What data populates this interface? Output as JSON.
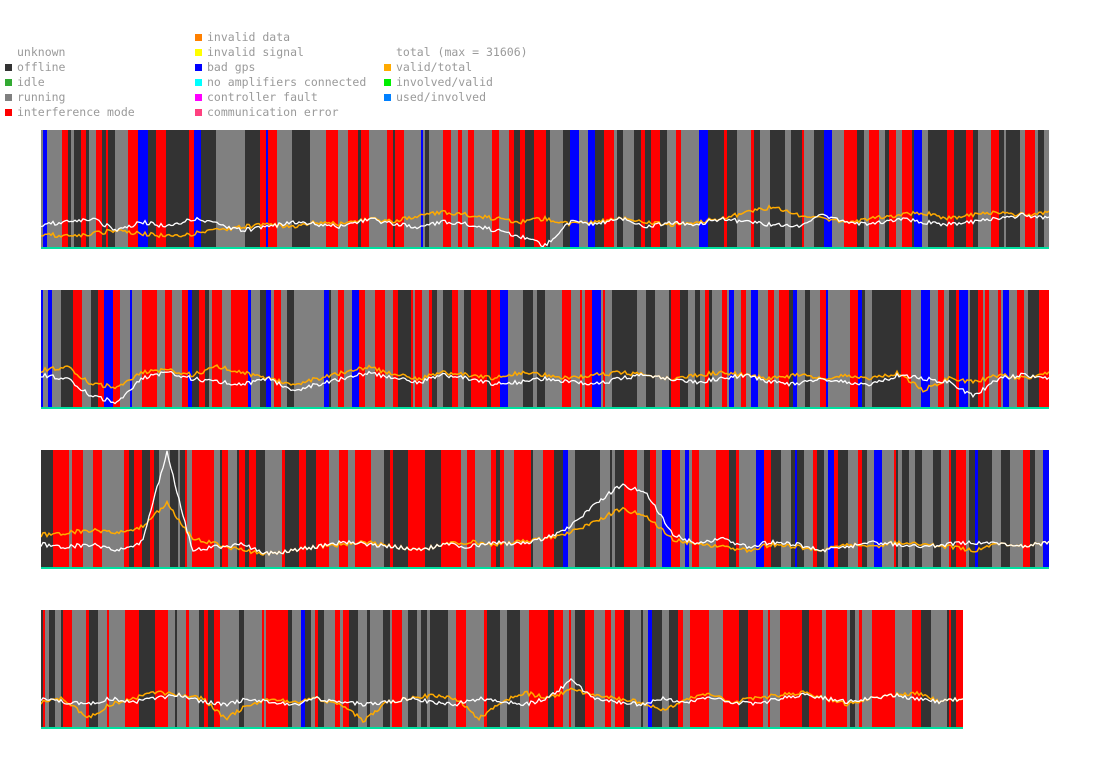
{
  "legend": {
    "states": [
      {
        "label": "unknown",
        "color": ""
      },
      {
        "label": "offline",
        "color": "#333333"
      },
      {
        "label": "idle",
        "color": "#33aa33"
      },
      {
        "label": "running",
        "color": "#808080"
      },
      {
        "label": "interference mode",
        "color": "#ff0000"
      }
    ],
    "faults": [
      {
        "label": "invalid data",
        "color": "#ff8000"
      },
      {
        "label": "invalid signal",
        "color": "#ffff00"
      },
      {
        "label": "bad gps",
        "color": "#0000ff"
      },
      {
        "label": "no amplifiers connected",
        "color": "#00ffff"
      },
      {
        "label": "controller fault",
        "color": "#ff00ff"
      },
      {
        "label": "communication error",
        "color": "#ff4080"
      }
    ],
    "lines": [
      {
        "label": "total (max = 31606)",
        "color": ""
      },
      {
        "label": "valid/total",
        "color": "#ffaa00"
      },
      {
        "label": "involved/valid",
        "color": "#00ee00"
      },
      {
        "label": "used/involved",
        "color": "#0080ff"
      }
    ]
  },
  "chart_data": {
    "type": "line",
    "total_max": 31606,
    "panels": [
      {
        "width_fraction": 1.0,
        "seed": 11,
        "blue_fraction": 0.06,
        "red_fraction": 0.28,
        "white": [
          0.2,
          0.22,
          0.25,
          0.15,
          0.22,
          0.18,
          0.25,
          0.2,
          0.15,
          0.18,
          0.22,
          0.2,
          0.18,
          0.25,
          0.2,
          0.18,
          0.22,
          0.2,
          0.15,
          0.1,
          0.02,
          0.22,
          0.2,
          0.25,
          0.18,
          0.22,
          0.2,
          0.25,
          0.22,
          0.2,
          0.18,
          0.28,
          0.22,
          0.2,
          0.25,
          0.22,
          0.2,
          0.22,
          0.25,
          0.28,
          0.25
        ],
        "orange": [
          0.12,
          0.1,
          0.12,
          0.15,
          0.12,
          0.1,
          0.12,
          0.15,
          0.18,
          0.2,
          0.18,
          0.22,
          0.2,
          0.25,
          0.22,
          0.28,
          0.3,
          0.28,
          0.25,
          0.22,
          0.25,
          0.2,
          0.22,
          0.25,
          0.22,
          0.2,
          0.22,
          0.25,
          0.3,
          0.35,
          0.28,
          0.25,
          0.22,
          0.25,
          0.28,
          0.3,
          0.25,
          0.28,
          0.3,
          0.28,
          0.3
        ]
      },
      {
        "width_fraction": 1.0,
        "seed": 23,
        "blue_fraction": 0.12,
        "red_fraction": 0.3,
        "white": [
          0.28,
          0.25,
          0.1,
          0.05,
          0.25,
          0.3,
          0.25,
          0.22,
          0.2,
          0.25,
          0.15,
          0.2,
          0.25,
          0.3,
          0.25,
          0.22,
          0.28,
          0.25,
          0.2,
          0.22,
          0.25,
          0.22,
          0.2,
          0.25,
          0.28,
          0.25,
          0.22,
          0.25,
          0.28,
          0.22,
          0.2,
          0.25,
          0.22,
          0.2,
          0.28,
          0.25,
          0.22,
          0.1,
          0.25,
          0.28,
          0.25
        ],
        "orange": [
          0.32,
          0.35,
          0.2,
          0.18,
          0.3,
          0.32,
          0.28,
          0.35,
          0.3,
          0.25,
          0.2,
          0.25,
          0.3,
          0.35,
          0.28,
          0.25,
          0.3,
          0.28,
          0.25,
          0.3,
          0.28,
          0.25,
          0.28,
          0.3,
          0.28,
          0.25,
          0.28,
          0.3,
          0.28,
          0.25,
          0.28,
          0.25,
          0.28,
          0.25,
          0.3,
          0.15,
          0.25,
          0.22,
          0.28,
          0.25,
          0.3
        ]
      },
      {
        "width_fraction": 1.0,
        "seed": 37,
        "blue_fraction": 0.05,
        "red_fraction": 0.3,
        "white": [
          0.2,
          0.18,
          0.2,
          0.15,
          0.22,
          0.98,
          0.15,
          0.18,
          0.2,
          0.12,
          0.15,
          0.18,
          0.22,
          0.2,
          0.18,
          0.15,
          0.2,
          0.18,
          0.22,
          0.2,
          0.25,
          0.35,
          0.55,
          0.7,
          0.65,
          0.3,
          0.2,
          0.25,
          0.18,
          0.22,
          0.2,
          0.15,
          0.18,
          0.22,
          0.2,
          0.18,
          0.2,
          0.22,
          0.2,
          0.18,
          0.22
        ],
        "orange": [
          0.28,
          0.3,
          0.32,
          0.3,
          0.35,
          0.55,
          0.25,
          0.2,
          0.15,
          0.12,
          0.15,
          0.18,
          0.2,
          0.22,
          0.18,
          0.15,
          0.2,
          0.22,
          0.2,
          0.22,
          0.25,
          0.3,
          0.4,
          0.5,
          0.45,
          0.25,
          0.2,
          0.18,
          0.15,
          0.2,
          0.18,
          0.15,
          0.2,
          0.18,
          0.22,
          0.2,
          0.18,
          0.15,
          0.2,
          0.18,
          0.22
        ]
      },
      {
        "width_fraction": 0.915,
        "seed": 53,
        "blue_fraction": 0.04,
        "red_fraction": 0.34,
        "white": [
          0.25,
          0.22,
          0.2,
          0.25,
          0.22,
          0.25,
          0.28,
          0.22,
          0.2,
          0.25,
          0.22,
          0.2,
          0.25,
          0.22,
          0.2,
          0.22,
          0.25,
          0.22,
          0.2,
          0.25,
          0.22,
          0.2,
          0.25,
          0.4,
          0.25,
          0.22,
          0.2,
          0.25,
          0.22,
          0.25,
          0.22,
          0.2,
          0.25,
          0.28,
          0.25,
          0.22,
          0.25,
          0.28,
          0.25,
          0.22,
          0.25
        ],
        "orange": [
          0.22,
          0.25,
          0.08,
          0.2,
          0.25,
          0.3,
          0.28,
          0.25,
          0.08,
          0.2,
          0.25,
          0.22,
          0.25,
          0.2,
          0.06,
          0.22,
          0.25,
          0.28,
          0.25,
          0.08,
          0.22,
          0.3,
          0.25,
          0.32,
          0.28,
          0.25,
          0.22,
          0.15,
          0.25,
          0.28,
          0.22,
          0.25,
          0.28,
          0.3,
          0.25,
          0.2,
          0.25,
          0.28,
          0.3,
          0.22,
          0.25
        ]
      }
    ]
  }
}
